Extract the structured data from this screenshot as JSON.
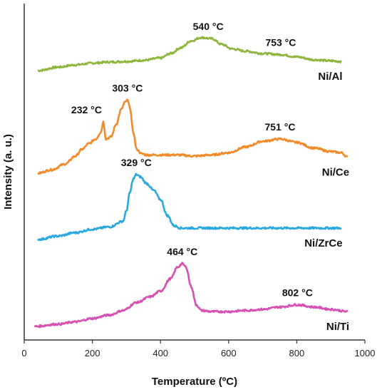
{
  "chart_data": {
    "type": "line",
    "xlabel": "Temperature (ºC)",
    "ylabel": "Intensity (a. u.)",
    "xlim": [
      0,
      1000
    ],
    "xticks": [
      "0",
      "200",
      "400",
      "600",
      "800",
      "1000"
    ],
    "grid": false,
    "legend": "inline labels at right end of each curve",
    "series": [
      {
        "name": "Ni/Al",
        "color": "#8cb63c",
        "offset": 3,
        "x": [
          40,
          100,
          150,
          200,
          250,
          300,
          350,
          400,
          430,
          460,
          490,
          520,
          550,
          580,
          610,
          650,
          700,
          753,
          800,
          850,
          900,
          930
        ],
        "y": [
          0.0,
          0.06,
          0.1,
          0.13,
          0.15,
          0.16,
          0.18,
          0.22,
          0.3,
          0.4,
          0.52,
          0.58,
          0.56,
          0.46,
          0.38,
          0.34,
          0.3,
          0.28,
          0.24,
          0.19,
          0.17,
          0.16
        ]
      },
      {
        "name": "Ni/Ce",
        "color": "#f28a2a",
        "offset": 2,
        "x": [
          40,
          80,
          120,
          150,
          170,
          190,
          210,
          225,
          232,
          240,
          255,
          270,
          285,
          295,
          303,
          310,
          320,
          330,
          345,
          360,
          400,
          450,
          500,
          550,
          600,
          650,
          700,
          751,
          800,
          850,
          900,
          930,
          950
        ],
        "y": [
          0.0,
          0.06,
          0.16,
          0.3,
          0.42,
          0.52,
          0.6,
          0.72,
          0.9,
          0.6,
          0.64,
          0.86,
          1.12,
          1.24,
          1.28,
          1.16,
          0.72,
          0.42,
          0.34,
          0.32,
          0.32,
          0.32,
          0.3,
          0.32,
          0.36,
          0.46,
          0.56,
          0.6,
          0.54,
          0.44,
          0.38,
          0.36,
          0.28
        ]
      },
      {
        "name": "Ni/ZrCe",
        "color": "#29a8df",
        "offset": 1,
        "x": [
          40,
          100,
          150,
          200,
          250,
          290,
          300,
          310,
          320,
          329,
          340,
          360,
          380,
          400,
          420,
          440,
          460,
          500,
          600,
          700,
          800,
          900,
          930
        ],
        "y": [
          0.0,
          0.06,
          0.12,
          0.18,
          0.22,
          0.32,
          0.5,
          0.82,
          1.06,
          1.14,
          1.1,
          0.98,
          0.86,
          0.7,
          0.42,
          0.24,
          0.2,
          0.2,
          0.2,
          0.2,
          0.2,
          0.2,
          0.2
        ]
      },
      {
        "name": "Ni/Ti",
        "color": "#d84fb4",
        "offset": 0,
        "x": [
          30,
          100,
          150,
          200,
          250,
          290,
          330,
          370,
          400,
          430,
          450,
          464,
          475,
          490,
          505,
          520,
          550,
          600,
          650,
          700,
          750,
          802,
          850,
          900,
          950
        ],
        "y": [
          0.0,
          0.04,
          0.08,
          0.14,
          0.2,
          0.28,
          0.42,
          0.52,
          0.62,
          0.84,
          1.04,
          1.1,
          1.04,
          0.7,
          0.38,
          0.28,
          0.26,
          0.26,
          0.28,
          0.3,
          0.34,
          0.38,
          0.34,
          0.3,
          0.26
        ]
      }
    ],
    "annotations": [
      {
        "text": "540 °C",
        "x": 540,
        "series": "Ni/Al"
      },
      {
        "text": "753 °C",
        "x": 753,
        "series": "Ni/Al"
      },
      {
        "text": "303 °C",
        "x": 303,
        "series": "Ni/Ce"
      },
      {
        "text": "232 °C",
        "x": 232,
        "series": "Ni/Ce"
      },
      {
        "text": "751 °C",
        "x": 751,
        "series": "Ni/Ce"
      },
      {
        "text": "329 °C",
        "x": 329,
        "series": "Ni/ZrCe"
      },
      {
        "text": "464 °C",
        "x": 464,
        "series": "Ni/Ti"
      },
      {
        "text": "802 °C",
        "x": 802,
        "series": "Ni/Ti"
      }
    ]
  }
}
